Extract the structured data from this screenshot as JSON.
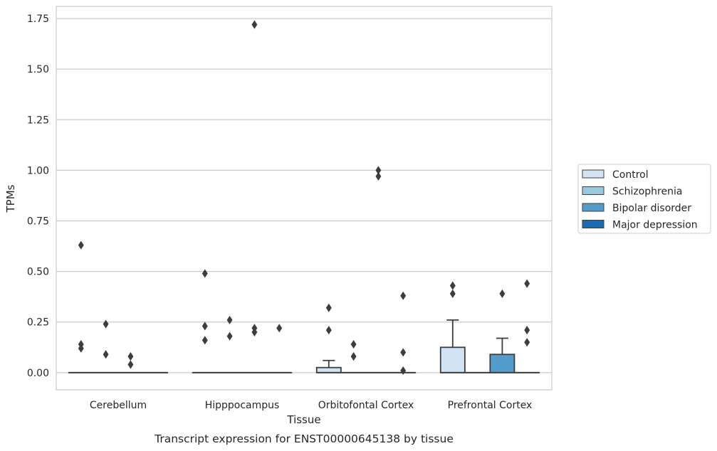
{
  "chart_data": {
    "type": "box",
    "title": "",
    "caption": "Transcript expression for ENST00000645138 by tissue",
    "xlabel": "Tissue",
    "ylabel": "TPMs",
    "ylim": [
      -0.085,
      1.81
    ],
    "yticks": [
      0.0,
      0.25,
      0.5,
      0.75,
      1.0,
      1.25,
      1.5,
      1.75
    ],
    "ytick_labels": [
      "0.00",
      "0.25",
      "0.50",
      "0.75",
      "1.00",
      "1.25",
      "1.50",
      "1.75"
    ],
    "categories": [
      "Cerebellum",
      "Hipppocampus",
      "Orbitofontal Cortex",
      "Prefrontal Cortex"
    ],
    "grid": true,
    "legend_position": "right",
    "series": [
      {
        "name": "Control",
        "color": "#d2e3f3",
        "boxes": [
          {
            "q1": 0,
            "median": 0,
            "q3": 0,
            "whisker_low": 0,
            "whisker_high": 0,
            "outliers": [
              0.14,
              0.12,
              0.63
            ]
          },
          {
            "q1": 0,
            "median": 0,
            "q3": 0,
            "whisker_low": 0,
            "whisker_high": 0,
            "outliers": [
              0.49,
              0.23,
              0.16
            ]
          },
          {
            "q1": 0,
            "median": 0,
            "q3": 0.025,
            "whisker_low": 0,
            "whisker_high": 0.06,
            "outliers": [
              0.32,
              0.21
            ]
          },
          {
            "q1": 0,
            "median": 0,
            "q3": 0.125,
            "whisker_low": 0,
            "whisker_high": 0.26,
            "outliers": [
              0.43,
              0.39
            ]
          }
        ]
      },
      {
        "name": "Schizophrenia",
        "color": "#9ac8e0",
        "boxes": [
          {
            "q1": 0,
            "median": 0,
            "q3": 0,
            "whisker_low": 0,
            "whisker_high": 0,
            "outliers": [
              0.24,
              0.09
            ]
          },
          {
            "q1": 0,
            "median": 0,
            "q3": 0,
            "whisker_low": 0,
            "whisker_high": 0,
            "outliers": [
              0.26,
              0.18
            ]
          },
          {
            "q1": 0,
            "median": 0,
            "q3": 0,
            "whisker_low": 0,
            "whisker_high": 0,
            "outliers": [
              0.14,
              0.08
            ]
          },
          {
            "q1": 0,
            "median": 0,
            "q3": 0,
            "whisker_low": 0,
            "whisker_high": 0,
            "outliers": []
          }
        ]
      },
      {
        "name": "Bipolar disorder",
        "color": "#529dcc",
        "boxes": [
          {
            "q1": 0,
            "median": 0,
            "q3": 0,
            "whisker_low": 0,
            "whisker_high": 0,
            "outliers": [
              0.08,
              0.04
            ]
          },
          {
            "q1": 0,
            "median": 0,
            "q3": 0,
            "whisker_low": 0,
            "whisker_high": 0,
            "outliers": [
              1.72,
              0.22,
              0.2
            ]
          },
          {
            "q1": 0,
            "median": 0,
            "q3": 0,
            "whisker_low": 0,
            "whisker_high": 0,
            "outliers": [
              1.0,
              0.97
            ]
          },
          {
            "q1": 0,
            "median": 0,
            "q3": 0.09,
            "whisker_low": 0,
            "whisker_high": 0.17,
            "outliers": [
              0.39
            ]
          }
        ]
      },
      {
        "name": "Major depression",
        "color": "#1c6aaf",
        "boxes": [
          {
            "q1": 0,
            "median": 0,
            "q3": 0,
            "whisker_low": 0,
            "whisker_high": 0,
            "outliers": []
          },
          {
            "q1": 0,
            "median": 0,
            "q3": 0,
            "whisker_low": 0,
            "whisker_high": 0,
            "outliers": [
              0.22
            ]
          },
          {
            "q1": 0,
            "median": 0,
            "q3": 0,
            "whisker_low": 0,
            "whisker_high": 0,
            "outliers": [
              0.38,
              0.1,
              0.01
            ]
          },
          {
            "q1": 0,
            "median": 0,
            "q3": 0,
            "whisker_low": 0,
            "whisker_high": 0,
            "outliers": [
              0.44,
              0.21,
              0.15
            ]
          }
        ]
      }
    ]
  }
}
